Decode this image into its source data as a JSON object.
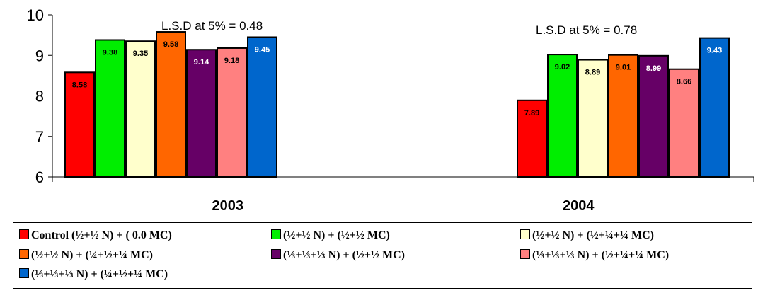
{
  "chart_data": {
    "type": "bar",
    "categories": [
      "2003",
      "2004"
    ],
    "ylim": [
      6,
      10
    ],
    "yticks": [
      6,
      7,
      8,
      9,
      10
    ],
    "grid": false,
    "annotations": [
      "L.S.D at 5% = 0.48",
      "L.S.D at 5% = 0.78"
    ],
    "series": [
      {
        "name": "Control (½+½ N) + ( 0.0 MC)",
        "color": "#ff0000",
        "label_color": "#000000",
        "values": [
          8.58,
          7.89
        ]
      },
      {
        "name": "(½+½ N) + (½+½ MC)",
        "color": "#00ee00",
        "label_color": "#000000",
        "values": [
          9.38,
          9.02
        ]
      },
      {
        "name": "(½+½ N) + (½+¼+¼ MC)",
        "color": "#ffffcc",
        "label_color": "#000000",
        "values": [
          9.35,
          8.89
        ]
      },
      {
        "name": "(½+½ N) + (¼+½+¼ MC)",
        "color": "#ff6600",
        "label_color": "#000000",
        "values": [
          9.58,
          9.01
        ]
      },
      {
        "name": "(⅓+⅓+⅓ N) + (½+½ MC)",
        "color": "#660066",
        "label_color": "#ffffff",
        "values": [
          9.14,
          8.99
        ]
      },
      {
        "name": "(⅓+⅓+⅓ N) + (½+¼+¼ MC)",
        "color": "#ff8080",
        "label_color": "#000000",
        "values": [
          9.18,
          8.66
        ]
      },
      {
        "name": "(⅓+⅓+⅓ N) + (¼+½+¼ MC)",
        "color": "#0066cc",
        "label_color": "#ffffff",
        "values": [
          9.45,
          9.43
        ]
      }
    ],
    "legend_position": "bottom"
  }
}
